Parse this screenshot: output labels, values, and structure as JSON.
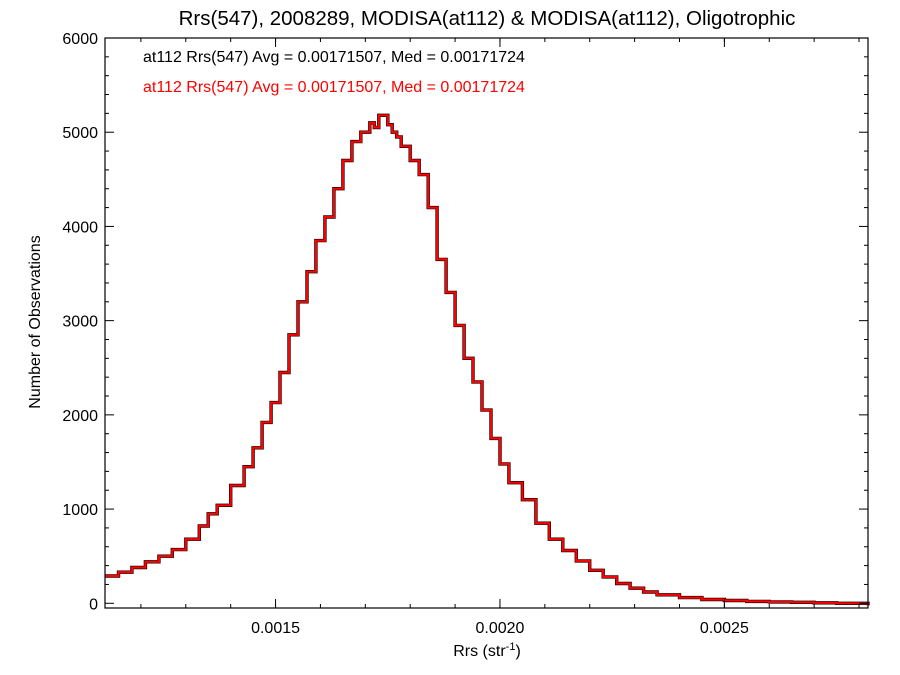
{
  "chart_data": {
    "type": "line",
    "title": "Rrs(547), 2008289, MODISA(at112) & MODISA(at112), Oligotrophic",
    "xlabel_base": "Rrs (str",
    "xlabel_sup": "-1",
    "xlabel_close": ")",
    "ylabel": "Number of Observations",
    "xlim": [
      0.00112,
      0.00282
    ],
    "ylim": [
      -50,
      6000
    ],
    "x_ticks": [
      0.0015,
      0.002,
      0.0025
    ],
    "x_tick_labels": [
      "0.0015",
      "0.0020",
      "0.0025"
    ],
    "y_ticks": [
      0,
      1000,
      2000,
      3000,
      4000,
      5000,
      6000
    ],
    "y_tick_labels": [
      "0",
      "1000",
      "2000",
      "3000",
      "4000",
      "5000",
      "6000"
    ],
    "grid": false,
    "annotations": [
      {
        "text": "at112 Rrs(547) Avg = 0.00171507, Med = 0.00171724",
        "color": "#000000"
      },
      {
        "text": "at112 Rrs(547) Avg = 0.00171507, Med = 0.00171724",
        "color": "#ff0000"
      }
    ],
    "series": [
      {
        "color": "#ff0000",
        "underlay_color": "#000000",
        "step": true,
        "points": [
          [
            0.00112,
            290
          ],
          [
            0.00115,
            330
          ],
          [
            0.00118,
            380
          ],
          [
            0.00121,
            440
          ],
          [
            0.00124,
            500
          ],
          [
            0.00127,
            570
          ],
          [
            0.0013,
            680
          ],
          [
            0.00133,
            820
          ],
          [
            0.00135,
            950
          ],
          [
            0.00137,
            1040
          ],
          [
            0.0014,
            1250
          ],
          [
            0.00143,
            1450
          ],
          [
            0.00145,
            1650
          ],
          [
            0.00147,
            1920
          ],
          [
            0.00149,
            2130
          ],
          [
            0.00151,
            2450
          ],
          [
            0.00153,
            2850
          ],
          [
            0.00155,
            3200
          ],
          [
            0.00157,
            3520
          ],
          [
            0.00159,
            3850
          ],
          [
            0.00161,
            4100
          ],
          [
            0.00163,
            4400
          ],
          [
            0.00165,
            4700
          ],
          [
            0.00167,
            4900
          ],
          [
            0.00169,
            5000
          ],
          [
            0.00171,
            5100
          ],
          [
            0.00172,
            5050
          ],
          [
            0.00173,
            5180
          ],
          [
            0.00175,
            5080
          ],
          [
            0.00176,
            5000
          ],
          [
            0.00177,
            4950
          ],
          [
            0.00178,
            4850
          ],
          [
            0.0018,
            4700
          ],
          [
            0.00182,
            4550
          ],
          [
            0.00184,
            4200
          ],
          [
            0.00186,
            3650
          ],
          [
            0.00188,
            3300
          ],
          [
            0.0019,
            2950
          ],
          [
            0.00192,
            2600
          ],
          [
            0.00194,
            2350
          ],
          [
            0.00196,
            2050
          ],
          [
            0.00198,
            1750
          ],
          [
            0.002,
            1480
          ],
          [
            0.00202,
            1280
          ],
          [
            0.00205,
            1100
          ],
          [
            0.00208,
            850
          ],
          [
            0.00211,
            680
          ],
          [
            0.00214,
            560
          ],
          [
            0.00217,
            450
          ],
          [
            0.0022,
            350
          ],
          [
            0.00223,
            280
          ],
          [
            0.00226,
            210
          ],
          [
            0.00229,
            160
          ],
          [
            0.00232,
            120
          ],
          [
            0.00235,
            90
          ],
          [
            0.0024,
            60
          ],
          [
            0.00245,
            40
          ],
          [
            0.0025,
            30
          ],
          [
            0.00255,
            20
          ],
          [
            0.0026,
            15
          ],
          [
            0.00265,
            10
          ],
          [
            0.0027,
            5
          ],
          [
            0.00275,
            0
          ],
          [
            0.00282,
            -20
          ]
        ]
      }
    ]
  }
}
